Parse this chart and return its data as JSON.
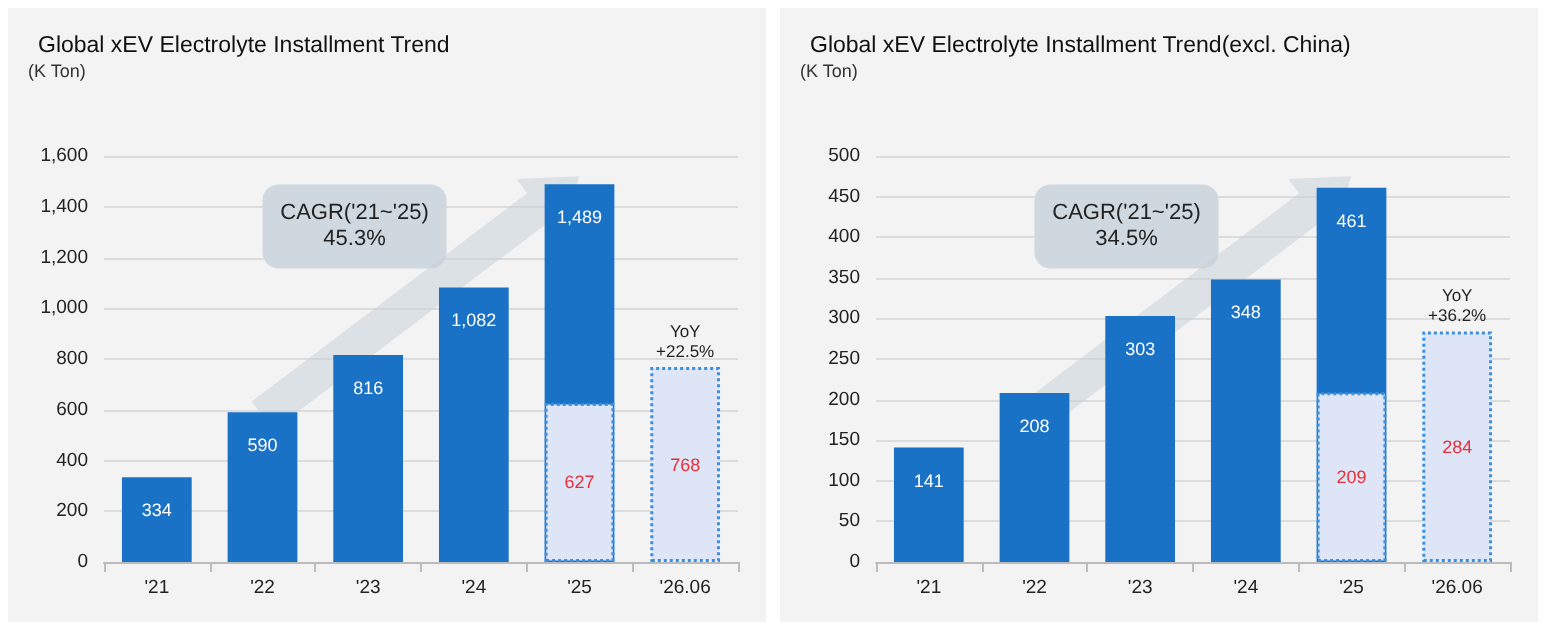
{
  "chart_data": [
    {
      "type": "bar",
      "title": "Global xEV Electrolyte Installment Trend",
      "ylabel": "(K Ton)",
      "categories": [
        "'21",
        "'22",
        "'23",
        "'24",
        "'25",
        "'26.06"
      ],
      "ylim": [
        0,
        1600
      ],
      "yticks": [
        0,
        200,
        400,
        600,
        800,
        {
          "value": 1000,
          "label": "1,000"
        },
        {
          "value": 1200,
          "label": "1,200"
        },
        {
          "value": 1400,
          "label": "1,400"
        },
        {
          "value": 1600,
          "label": "1,600"
        }
      ],
      "grid": "y",
      "data_labels": true,
      "series": [
        {
          "color": "#1a72c6",
          "values": [
            334,
            590,
            816,
            1082,
            1489,
            null
          ],
          "value_labels": [
            "334",
            "590",
            "816",
            "1,082",
            "1,489",
            null
          ]
        },
        {
          "color": "#dde5f6",
          "line_style": "dotted",
          "values": [
            null,
            null,
            null,
            null,
            627,
            768
          ]
        }
      ],
      "annotations": [
        "CAGR('21~'25)\n45.3%",
        {
          "text": "YoY\n+22.5%",
          "x": "'26.06",
          "y": 768
        }
      ]
    },
    {
      "type": "bar",
      "title": "Global xEV Electrolyte Installment Trend(excl. China)",
      "ylabel": "(K Ton)",
      "categories": [
        "'21",
        "'22",
        "'23",
        "'24",
        "'25",
        "'26.06"
      ],
      "ylim": [
        0,
        500
      ],
      "yticks": [
        0,
        50,
        100,
        150,
        200,
        250,
        300,
        350,
        400,
        450,
        500
      ],
      "grid": "y",
      "data_labels": true,
      "series": [
        {
          "color": "#1a72c6",
          "values": [
            141,
            208,
            303,
            348,
            461,
            null
          ]
        },
        {
          "color": "#dde5f6",
          "line_style": "dotted",
          "values": [
            null,
            null,
            null,
            null,
            209,
            284
          ]
        }
      ],
      "annotations": [
        "CAGR('21~'25)\n34.5%",
        {
          "text": "YoY\n+36.2%",
          "x": "'26.06",
          "y": 284
        }
      ]
    }
  ]
}
